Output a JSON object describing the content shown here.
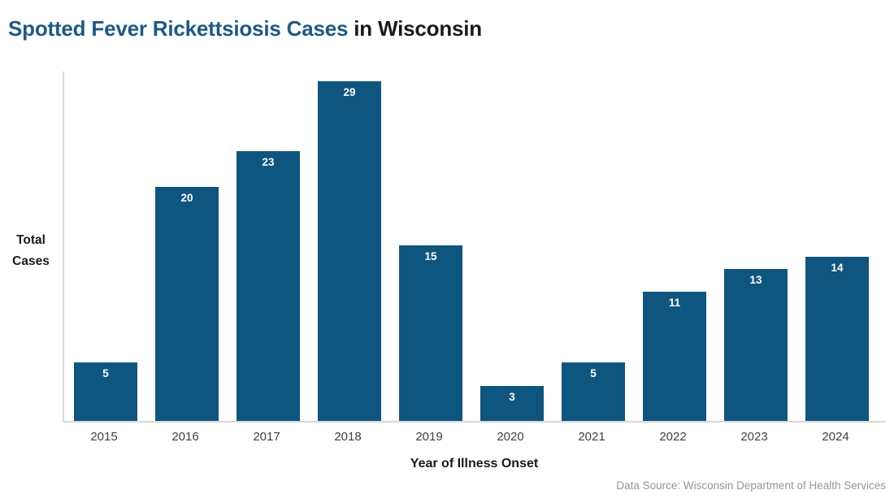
{
  "header": {
    "title_accent": "Spotted Fever Rickettsiosis Cases",
    "title_rest": " in Wisconsin"
  },
  "chart_data": {
    "type": "bar",
    "title": "Spotted Fever Rickettsiosis Cases in Wisconsin",
    "categories": [
      "2015",
      "2016",
      "2017",
      "2018",
      "2019",
      "2020",
      "2021",
      "2022",
      "2023",
      "2024"
    ],
    "values": [
      5,
      20,
      23,
      29,
      15,
      3,
      5,
      11,
      13,
      14
    ],
    "xlabel": "Year of Illness Onset",
    "ylabel": "Total Cases",
    "ylabel_lines": [
      "Total",
      "Cases"
    ],
    "ylim": [
      0,
      30
    ],
    "grid": false,
    "legend": "none",
    "bar_color": "#0E567F",
    "bar_label_color": "#FFFFFF",
    "axis_line_color": "#D9D9D9",
    "tick_label_color": "#3F3F3F",
    "title_accent_color": "#1B5A87",
    "title_text_color": "#1A1A1A"
  },
  "footer": {
    "source": "Data Source: Wisconsin Department of Health Services"
  }
}
